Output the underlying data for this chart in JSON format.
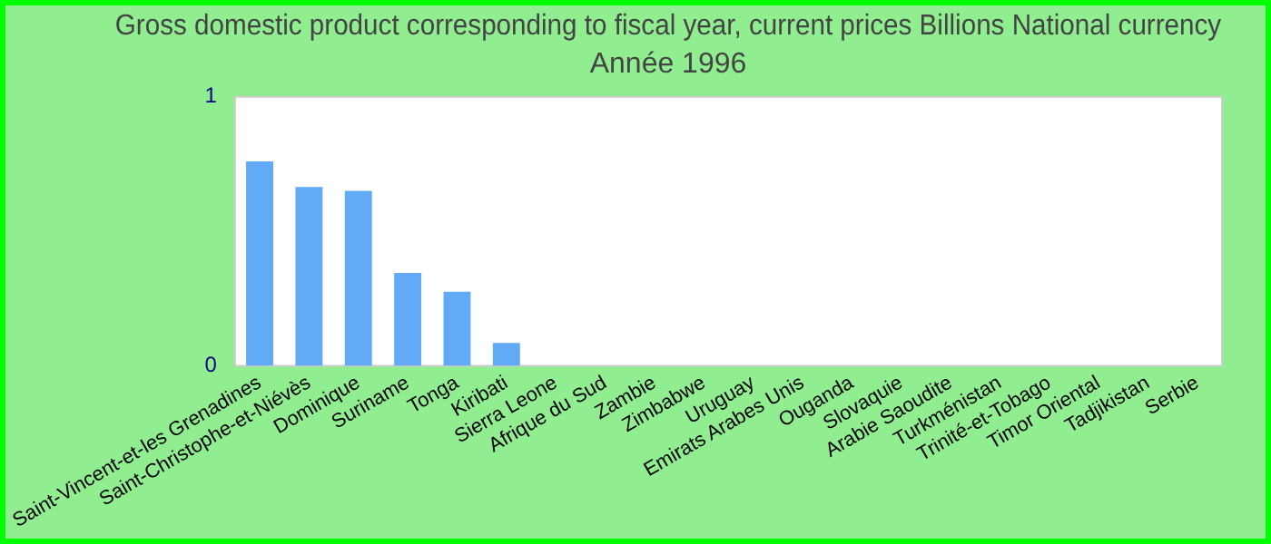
{
  "chart_data": {
    "type": "bar",
    "title": "Gross domestic product corresponding to fiscal year, current prices Billions National currency",
    "subtitle": "Année 1996",
    "categories": [
      "Saint-Vincent-et-les Grenadines",
      "Saint-Christophe-et-Niévès",
      "Dominique",
      "Suriname",
      "Tonga",
      "Kiribati",
      "Sierra Leone",
      "Afrique du Sud",
      "Zambie",
      "Zimbabwe",
      "Uruguay",
      "Emirats Arabes Unis",
      "Ouganda",
      "Slovaquie",
      "Arabie Saoudite",
      "Turkménistan",
      "Trinité-et-Tobago",
      "Timor Oriental",
      "Tadjikistan",
      "Serbie"
    ],
    "values": [
      0.76,
      0.665,
      0.65,
      0.345,
      0.275,
      0.085,
      0,
      0,
      0,
      0,
      0,
      0,
      0,
      0,
      0,
      0,
      0,
      0,
      0,
      0
    ],
    "color": "#62aaf5",
    "ylim": [
      0,
      1
    ],
    "yticks": [
      0,
      1
    ],
    "grid": false,
    "legend": false
  }
}
